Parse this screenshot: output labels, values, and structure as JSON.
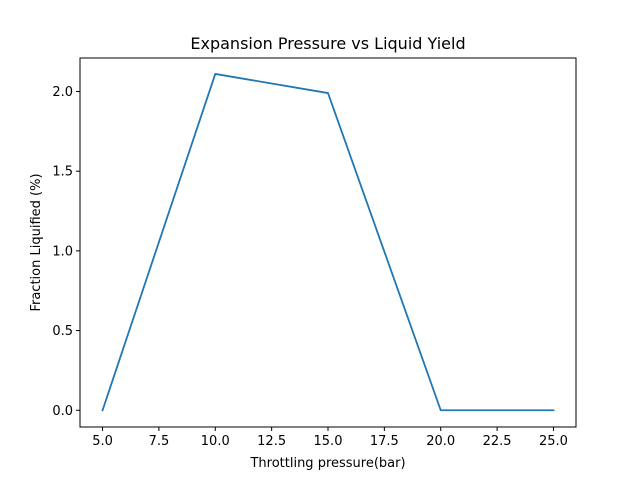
{
  "chart_data": {
    "type": "line",
    "title": "Expansion Pressure vs Liquid Yield",
    "xlabel": "Throttling pressure(bar)",
    "ylabel": "Fraction Liquified (%)",
    "xlim": [
      4.0,
      26.0
    ],
    "ylim": [
      -0.105,
      2.21
    ],
    "x_ticks": [
      5.0,
      7.5,
      10.0,
      12.5,
      15.0,
      17.5,
      20.0,
      22.5,
      25.0
    ],
    "x_tick_labels": [
      "5.0",
      "7.5",
      "10.0",
      "12.5",
      "15.0",
      "17.5",
      "20.0",
      "22.5",
      "25.0"
    ],
    "y_ticks": [
      0.0,
      0.5,
      1.0,
      1.5,
      2.0
    ],
    "y_tick_labels": [
      "0.0",
      "0.5",
      "1.0",
      "1.5",
      "2.0"
    ],
    "grid": false,
    "series": [
      {
        "color": "#1f77b4",
        "x": [
          5,
          10,
          15,
          20,
          25
        ],
        "y": [
          0.0,
          2.11,
          1.99,
          0.0,
          0.0
        ]
      }
    ]
  }
}
